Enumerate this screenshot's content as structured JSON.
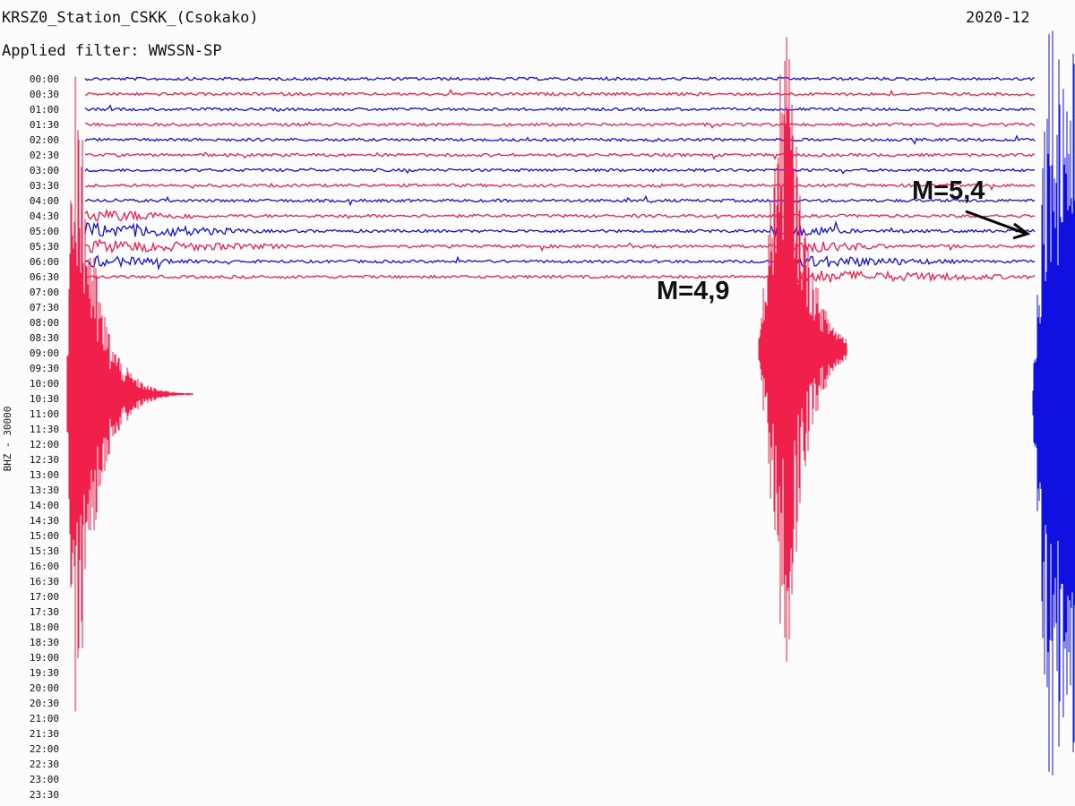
{
  "header": {
    "title": "KRSZ0_Station_CSKK_(Csokako)",
    "date": "2020-12",
    "filter": "Applied filter: WWSSN-SP"
  },
  "axis_label": "BHZ - 30000",
  "time_labels": [
    "00:00",
    "00:30",
    "01:00",
    "01:30",
    "02:00",
    "02:30",
    "03:00",
    "03:30",
    "04:00",
    "04:30",
    "05:00",
    "05:30",
    "06:00",
    "06:30",
    "07:00",
    "07:30",
    "08:00",
    "08:30",
    "09:00",
    "09:30",
    "10:00",
    "10:30",
    "11:00",
    "11:30",
    "12:00",
    "12:30",
    "13:00",
    "13:30",
    "14:00",
    "14:30",
    "15:00",
    "15:30",
    "16:00",
    "16:30",
    "17:00",
    "17:30",
    "18:00",
    "18:30",
    "19:00",
    "19:30",
    "20:00",
    "20:30",
    "21:00",
    "21:30",
    "22:00",
    "22:30",
    "23:00",
    "23:30"
  ],
  "annotations": [
    "M=4,9",
    "M=5,4"
  ]
}
